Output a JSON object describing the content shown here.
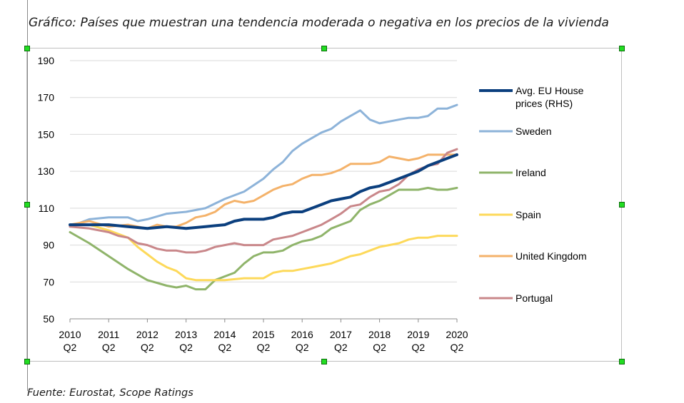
{
  "caption": "Gráfico: Países que muestran una tendencia moderada o negativa en los precios de la vivienda",
  "source": "Fuente: Eurostat, Scope Ratings",
  "chart_data": {
    "type": "line",
    "title": "",
    "xlabel": "",
    "ylabel": "",
    "ylim": [
      50,
      190
    ],
    "yticks": [
      50,
      70,
      90,
      110,
      130,
      150,
      170,
      190
    ],
    "xrange": [
      2010.5,
      2020.5
    ],
    "xticks": [
      {
        "x": 2010.5,
        "year": "2010",
        "q": "Q2"
      },
      {
        "x": 2011.5,
        "year": "2011",
        "q": "Q2"
      },
      {
        "x": 2012.5,
        "year": "2012",
        "q": "Q2"
      },
      {
        "x": 2013.5,
        "year": "2013",
        "q": "Q2"
      },
      {
        "x": 2014.5,
        "year": "2014",
        "q": "Q2"
      },
      {
        "x": 2015.5,
        "year": "2015",
        "q": "Q2"
      },
      {
        "x": 2016.5,
        "year": "2016",
        "q": "Q2"
      },
      {
        "x": 2017.5,
        "year": "2017",
        "q": "Q2"
      },
      {
        "x": 2018.5,
        "year": "2018",
        "q": "Q2"
      },
      {
        "x": 2019.5,
        "year": "2019",
        "q": "Q2"
      },
      {
        "x": 2020.5,
        "year": "2020",
        "q": "Q2"
      }
    ],
    "grid": "horizontal",
    "legend": "right",
    "series": [
      {
        "name": "Avg. EU House prices (RHS)",
        "color": "#0b3f7e",
        "width": 4,
        "x": [
          2010.5,
          2011,
          2011.5,
          2012,
          2012.5,
          2013,
          2013.5,
          2014,
          2014.25,
          2014.5,
          2014.75,
          2015,
          2015.25,
          2015.5,
          2015.75,
          2016,
          2016.25,
          2016.5,
          2016.75,
          2017,
          2017.25,
          2017.5,
          2017.75,
          2018,
          2018.25,
          2018.5,
          2018.75,
          2019,
          2019.25,
          2019.5,
          2019.75,
          2020,
          2020.25,
          2020.5
        ],
        "y": [
          101,
          101,
          101,
          100,
          99,
          100,
          99,
          100,
          100.5,
          101,
          103,
          104,
          104,
          104,
          105,
          107,
          108,
          108,
          110,
          112,
          114,
          115,
          116,
          119,
          121,
          122,
          124,
          126,
          128,
          130,
          133,
          135,
          137,
          139
        ]
      },
      {
        "name": "Sweden",
        "color": "#8db3d9",
        "width": 3,
        "x": [
          2010.5,
          2011,
          2011.5,
          2012,
          2012.25,
          2012.5,
          2013,
          2013.5,
          2014,
          2014.5,
          2015,
          2015.5,
          2015.75,
          2016,
          2016.25,
          2016.5,
          2016.75,
          2017,
          2017.25,
          2017.5,
          2017.75,
          2018,
          2018.25,
          2018.5,
          2018.75,
          2019,
          2019.25,
          2019.5,
          2019.75,
          2020,
          2020.25,
          2020.5
        ],
        "y": [
          100,
          104,
          105,
          105,
          103,
          104,
          107,
          108,
          110,
          115,
          119,
          126,
          131,
          135,
          141,
          145,
          148,
          151,
          153,
          157,
          160,
          163,
          158,
          156,
          157,
          158,
          159,
          159,
          160,
          164,
          164,
          166
        ]
      },
      {
        "name": "Ireland",
        "color": "#8fb46a",
        "width": 3,
        "x": [
          2010.5,
          2011,
          2011.5,
          2012,
          2012.5,
          2013,
          2013.25,
          2013.5,
          2013.75,
          2014,
          2014.25,
          2014.5,
          2014.75,
          2015,
          2015.25,
          2015.5,
          2015.75,
          2016,
          2016.25,
          2016.5,
          2016.75,
          2017,
          2017.25,
          2017.5,
          2017.75,
          2018,
          2018.25,
          2018.5,
          2018.75,
          2019,
          2019.25,
          2019.5,
          2019.75,
          2020,
          2020.25,
          2020.5
        ],
        "y": [
          97,
          91,
          84,
          77,
          71,
          68,
          67,
          68,
          66,
          66,
          71,
          73,
          75,
          80,
          84,
          86,
          86,
          87,
          90,
          92,
          93,
          95,
          99,
          101,
          103,
          109,
          112,
          114,
          117,
          120,
          120,
          120,
          121,
          120,
          120,
          121
        ]
      },
      {
        "name": "Spain",
        "color": "#fdd95a",
        "width": 3,
        "x": [
          2010.5,
          2011,
          2011.5,
          2012,
          2012.25,
          2012.5,
          2012.75,
          2013,
          2013.25,
          2013.5,
          2013.75,
          2014,
          2014.5,
          2015,
          2015.25,
          2015.5,
          2015.75,
          2016,
          2016.25,
          2016.5,
          2016.75,
          2017,
          2017.25,
          2017.5,
          2017.75,
          2018,
          2018.25,
          2018.5,
          2018.75,
          2019,
          2019.25,
          2019.5,
          2019.75,
          2020,
          2020.25,
          2020.5
        ],
        "y": [
          101,
          101,
          98,
          94,
          89,
          85,
          81,
          78,
          76,
          72,
          71,
          71,
          71,
          72,
          72,
          72,
          75,
          76,
          76,
          77,
          78,
          79,
          80,
          82,
          84,
          85,
          87,
          89,
          90,
          91,
          93,
          94,
          94,
          95,
          95,
          95
        ]
      },
      {
        "name": "United Kingdom",
        "color": "#f4b26a",
        "width": 3,
        "x": [
          2010.5,
          2011,
          2011.5,
          2012,
          2012.5,
          2012.75,
          2013,
          2013.25,
          2013.5,
          2013.75,
          2014,
          2014.25,
          2014.5,
          2014.75,
          2015,
          2015.25,
          2015.5,
          2015.75,
          2016,
          2016.25,
          2016.5,
          2016.75,
          2017,
          2017.25,
          2017.5,
          2017.75,
          2018,
          2018.25,
          2018.5,
          2018.75,
          2019,
          2019.25,
          2019.5,
          2019.75,
          2020,
          2020.25,
          2020.5
        ],
        "y": [
          101,
          103,
          100,
          101,
          99,
          101,
          100,
          100,
          102,
          105,
          106,
          108,
          112,
          114,
          113,
          114,
          117,
          120,
          122,
          123,
          126,
          128,
          128,
          129,
          131,
          134,
          134,
          134,
          135,
          138,
          137,
          136,
          137,
          139,
          139,
          139,
          139
        ]
      },
      {
        "name": "Portugal",
        "color": "#c9878a",
        "width": 3,
        "x": [
          2010.5,
          2011,
          2011.5,
          2011.75,
          2012,
          2012.25,
          2012.5,
          2012.75,
          2013,
          2013.25,
          2013.5,
          2013.75,
          2014,
          2014.25,
          2014.5,
          2014.75,
          2015,
          2015.25,
          2015.5,
          2015.75,
          2016,
          2016.25,
          2016.5,
          2016.75,
          2017,
          2017.25,
          2017.5,
          2017.75,
          2018,
          2018.25,
          2018.5,
          2018.75,
          2019,
          2019.25,
          2019.5,
          2019.75,
          2020,
          2020.25,
          2020.5
        ],
        "y": [
          100,
          99,
          97,
          95,
          94,
          91,
          90,
          88,
          87,
          87,
          86,
          86,
          87,
          89,
          90,
          91,
          90,
          90,
          90,
          93,
          94,
          95,
          97,
          99,
          101,
          104,
          107,
          111,
          112,
          116,
          119,
          120,
          123,
          128,
          131,
          133,
          134,
          140,
          142
        ]
      }
    ]
  }
}
